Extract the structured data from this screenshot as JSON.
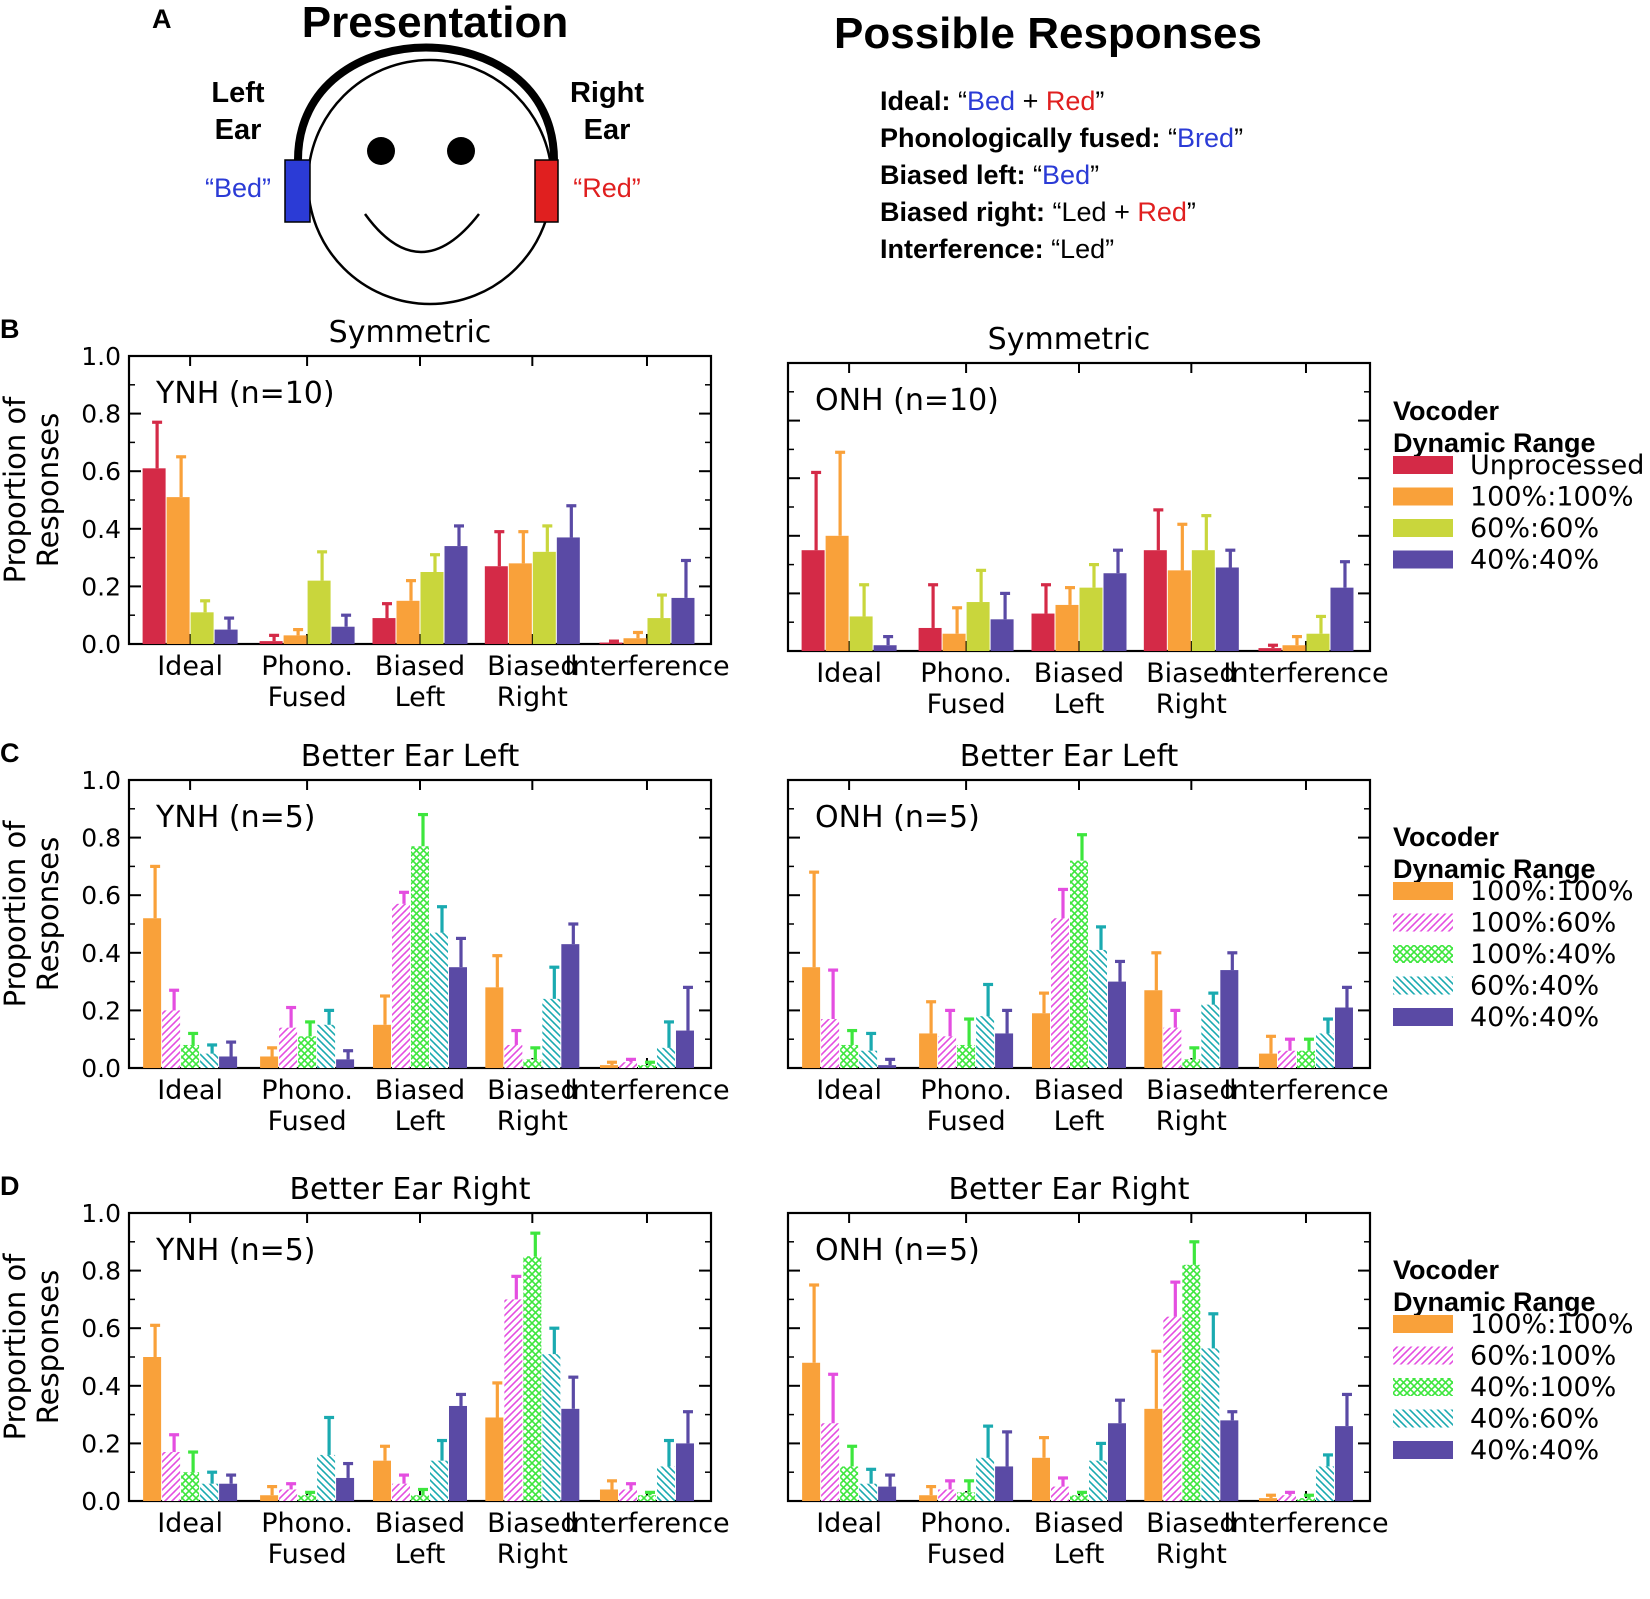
{
  "panel_a": {
    "letter": "A",
    "presentation_title": "Presentation",
    "left_ear": {
      "line1": "Left",
      "line2": "Ear",
      "word": "“Bed”"
    },
    "right_ear": {
      "line1": "Right",
      "line2": "Ear",
      "word": "“Red”"
    },
    "responses_title": "Possible Responses",
    "responses": [
      {
        "label": "Ideal:",
        "parts": [
          {
            "t": " “",
            "c": "black"
          },
          {
            "t": "Bed",
            "c": "blue"
          },
          {
            "t": " + ",
            "c": "black"
          },
          {
            "t": "Red",
            "c": "red"
          },
          {
            "t": "”",
            "c": "black"
          }
        ]
      },
      {
        "label": "Phonologically fused:",
        "parts": [
          {
            "t": " “",
            "c": "black"
          },
          {
            "t": "Bred",
            "c": "blue"
          },
          {
            "t": "”",
            "c": "black"
          }
        ]
      },
      {
        "label": "Biased left:",
        "parts": [
          {
            "t": " “",
            "c": "black"
          },
          {
            "t": "Bed",
            "c": "blue"
          },
          {
            "t": "”",
            "c": "black"
          }
        ]
      },
      {
        "label": "Biased right:",
        "parts": [
          {
            "t": " “Led + ",
            "c": "black"
          },
          {
            "t": "Red",
            "c": "red"
          },
          {
            "t": "”",
            "c": "black"
          }
        ]
      },
      {
        "label": "Interference:",
        "parts": [
          {
            "t": " “Led”",
            "c": "black"
          }
        ]
      }
    ]
  },
  "colors": {
    "blue": "#2b3bd6",
    "red": "#e01f1f",
    "black": "#000000",
    "Unprocessed": "#d42a47",
    "100%:100%": "#f9a13a",
    "60%:60%": "#c9d63c",
    "40%:40%": "#5a4aa5",
    "magenta": "#e44ee0",
    "green": "#3de63d",
    "teal": "#1aaab0"
  },
  "y_axis_label": [
    "Proportion of",
    "Responses"
  ],
  "categories": [
    "Ideal",
    "Phono.\nFused",
    "Biased\nLeft",
    "Biased\nRight",
    "Interference"
  ],
  "legend_title": [
    "Vocoder",
    "Dynamic Range"
  ],
  "chart_data": [
    {
      "type": "bar",
      "row": "B",
      "title": "Symmetric",
      "group_label": "YNH (n=10)",
      "ylim": [
        0,
        1
      ],
      "yticks": [
        0.0,
        0.2,
        0.4,
        0.6,
        0.8,
        1.0
      ],
      "series": [
        {
          "name": "Unprocessed",
          "pattern": "solid",
          "color_key": "Unprocessed",
          "values": [
            0.61,
            0.01,
            0.09,
            0.27,
            0.005
          ],
          "err": [
            0.77,
            0.03,
            0.14,
            0.39,
            0.01
          ]
        },
        {
          "name": "100%:100%",
          "pattern": "solid",
          "color_key": "100%:100%",
          "values": [
            0.51,
            0.03,
            0.15,
            0.28,
            0.02
          ],
          "err": [
            0.65,
            0.05,
            0.22,
            0.39,
            0.04
          ]
        },
        {
          "name": "60%:60%",
          "pattern": "solid",
          "color_key": "60%:60%",
          "values": [
            0.11,
            0.22,
            0.25,
            0.32,
            0.09
          ],
          "err": [
            0.15,
            0.32,
            0.31,
            0.41,
            0.17
          ]
        },
        {
          "name": "40%:40%",
          "pattern": "solid",
          "color_key": "40%:40%",
          "values": [
            0.05,
            0.06,
            0.34,
            0.37,
            0.16
          ],
          "err": [
            0.09,
            0.1,
            0.41,
            0.48,
            0.29
          ]
        }
      ]
    },
    {
      "type": "bar",
      "row": "B",
      "title": "Symmetric",
      "group_label": "ONH (n=10)",
      "ylim": [
        0,
        1
      ],
      "yticks": [],
      "series": [
        {
          "name": "Unprocessed",
          "pattern": "solid",
          "color_key": "Unprocessed",
          "values": [
            0.35,
            0.08,
            0.13,
            0.35,
            0.01
          ],
          "err": [
            0.62,
            0.23,
            0.23,
            0.49,
            0.02
          ]
        },
        {
          "name": "100%:100%",
          "pattern": "solid",
          "color_key": "100%:100%",
          "values": [
            0.4,
            0.06,
            0.16,
            0.28,
            0.02
          ],
          "err": [
            0.69,
            0.15,
            0.22,
            0.44,
            0.05
          ]
        },
        {
          "name": "60%:60%",
          "pattern": "solid",
          "color_key": "60%:60%",
          "values": [
            0.12,
            0.17,
            0.22,
            0.35,
            0.06
          ],
          "err": [
            0.23,
            0.28,
            0.3,
            0.47,
            0.12
          ]
        },
        {
          "name": "40%:40%",
          "pattern": "solid",
          "color_key": "40%:40%",
          "values": [
            0.02,
            0.11,
            0.27,
            0.29,
            0.22
          ],
          "err": [
            0.05,
            0.2,
            0.35,
            0.35,
            0.31
          ]
        }
      ]
    },
    {
      "type": "bar",
      "row": "C",
      "title": "Better Ear Left",
      "group_label": "YNH (n=5)",
      "ylim": [
        0,
        1
      ],
      "yticks": [
        0.0,
        0.2,
        0.4,
        0.6,
        0.8,
        1.0
      ],
      "series": [
        {
          "name": "100%:100%",
          "pattern": "solid",
          "color_key": "100%:100%",
          "values": [
            0.52,
            0.04,
            0.15,
            0.28,
            0.01
          ],
          "err": [
            0.7,
            0.07,
            0.25,
            0.39,
            0.02
          ]
        },
        {
          "name": "100%:60%",
          "pattern": "hatch",
          "color_key": "magenta",
          "values": [
            0.2,
            0.14,
            0.57,
            0.08,
            0.02
          ],
          "err": [
            0.27,
            0.21,
            0.61,
            0.13,
            0.03
          ]
        },
        {
          "name": "100%:40%",
          "pattern": "cross",
          "color_key": "green",
          "values": [
            0.08,
            0.11,
            0.77,
            0.03,
            0.01
          ],
          "err": [
            0.12,
            0.16,
            0.88,
            0.07,
            0.02
          ]
        },
        {
          "name": "60%:40%",
          "pattern": "backhatch",
          "color_key": "teal",
          "values": [
            0.05,
            0.15,
            0.47,
            0.24,
            0.07
          ],
          "err": [
            0.08,
            0.2,
            0.56,
            0.35,
            0.16
          ]
        },
        {
          "name": "40%:40%",
          "pattern": "solid",
          "color_key": "40%:40%",
          "values": [
            0.04,
            0.03,
            0.35,
            0.43,
            0.13
          ],
          "err": [
            0.09,
            0.06,
            0.45,
            0.5,
            0.28
          ]
        }
      ]
    },
    {
      "type": "bar",
      "row": "C",
      "title": "Better Ear Left",
      "group_label": "ONH (n=5)",
      "ylim": [
        0,
        1
      ],
      "yticks": [],
      "series": [
        {
          "name": "100%:100%",
          "pattern": "solid",
          "color_key": "100%:100%",
          "values": [
            0.35,
            0.12,
            0.19,
            0.27,
            0.05
          ],
          "err": [
            0.68,
            0.23,
            0.26,
            0.4,
            0.11
          ]
        },
        {
          "name": "100%:60%",
          "pattern": "hatch",
          "color_key": "magenta",
          "values": [
            0.17,
            0.11,
            0.52,
            0.14,
            0.06
          ],
          "err": [
            0.34,
            0.2,
            0.62,
            0.2,
            0.1
          ]
        },
        {
          "name": "100%:40%",
          "pattern": "cross",
          "color_key": "green",
          "values": [
            0.08,
            0.08,
            0.72,
            0.03,
            0.06
          ],
          "err": [
            0.13,
            0.17,
            0.81,
            0.07,
            0.1
          ]
        },
        {
          "name": "60%:40%",
          "pattern": "backhatch",
          "color_key": "teal",
          "values": [
            0.06,
            0.18,
            0.41,
            0.22,
            0.12
          ],
          "err": [
            0.12,
            0.29,
            0.49,
            0.26,
            0.17
          ]
        },
        {
          "name": "40%:40%",
          "pattern": "solid",
          "color_key": "40%:40%",
          "values": [
            0.01,
            0.12,
            0.3,
            0.34,
            0.21
          ],
          "err": [
            0.03,
            0.2,
            0.37,
            0.4,
            0.28
          ]
        }
      ]
    },
    {
      "type": "bar",
      "row": "D",
      "title": "Better Ear Right",
      "group_label": "YNH (n=5)",
      "ylim": [
        0,
        1
      ],
      "yticks": [
        0.0,
        0.2,
        0.4,
        0.6,
        0.8,
        1.0
      ],
      "series": [
        {
          "name": "100%:100%",
          "pattern": "solid",
          "color_key": "100%:100%",
          "values": [
            0.5,
            0.02,
            0.14,
            0.29,
            0.04
          ],
          "err": [
            0.61,
            0.05,
            0.19,
            0.41,
            0.07
          ]
        },
        {
          "name": "60%:100%",
          "pattern": "hatch",
          "color_key": "magenta",
          "values": [
            0.17,
            0.04,
            0.06,
            0.7,
            0.04
          ],
          "err": [
            0.23,
            0.06,
            0.09,
            0.78,
            0.06
          ]
        },
        {
          "name": "40%:100%",
          "pattern": "cross",
          "color_key": "green",
          "values": [
            0.1,
            0.02,
            0.02,
            0.85,
            0.02
          ],
          "err": [
            0.17,
            0.03,
            0.04,
            0.93,
            0.03
          ]
        },
        {
          "name": "40%:60%",
          "pattern": "backhatch",
          "color_key": "teal",
          "values": [
            0.06,
            0.16,
            0.14,
            0.51,
            0.12
          ],
          "err": [
            0.1,
            0.29,
            0.21,
            0.6,
            0.21
          ]
        },
        {
          "name": "40%:40%",
          "pattern": "solid",
          "color_key": "40%:40%",
          "values": [
            0.06,
            0.08,
            0.33,
            0.32,
            0.2
          ],
          "err": [
            0.09,
            0.13,
            0.37,
            0.43,
            0.31
          ]
        }
      ]
    },
    {
      "type": "bar",
      "row": "D",
      "title": "Better Ear Right",
      "group_label": "ONH (n=5)",
      "ylim": [
        0,
        1
      ],
      "yticks": [],
      "series": [
        {
          "name": "100%:100%",
          "pattern": "solid",
          "color_key": "100%:100%",
          "values": [
            0.48,
            0.02,
            0.15,
            0.32,
            0.01
          ],
          "err": [
            0.75,
            0.05,
            0.22,
            0.52,
            0.02
          ]
        },
        {
          "name": "60%:100%",
          "pattern": "hatch",
          "color_key": "magenta",
          "values": [
            0.27,
            0.04,
            0.05,
            0.64,
            0.02
          ],
          "err": [
            0.44,
            0.07,
            0.08,
            0.76,
            0.03
          ]
        },
        {
          "name": "40%:100%",
          "pattern": "cross",
          "color_key": "green",
          "values": [
            0.12,
            0.03,
            0.02,
            0.82,
            0.01
          ],
          "err": [
            0.19,
            0.07,
            0.03,
            0.9,
            0.02
          ]
        },
        {
          "name": "40%:60%",
          "pattern": "backhatch",
          "color_key": "teal",
          "values": [
            0.06,
            0.15,
            0.14,
            0.53,
            0.12
          ],
          "err": [
            0.11,
            0.26,
            0.2,
            0.65,
            0.16
          ]
        },
        {
          "name": "40%:40%",
          "pattern": "solid",
          "color_key": "40%:40%",
          "values": [
            0.05,
            0.12,
            0.27,
            0.28,
            0.26
          ],
          "err": [
            0.09,
            0.24,
            0.35,
            0.31,
            0.37
          ]
        }
      ]
    }
  ],
  "legends": [
    {
      "row": "B",
      "items": [
        {
          "label": "Unprocessed",
          "pattern": "solid",
          "color_key": "Unprocessed"
        },
        {
          "label": "100%:100%",
          "pattern": "solid",
          "color_key": "100%:100%"
        },
        {
          "label": "60%:60%",
          "pattern": "solid",
          "color_key": "60%:60%"
        },
        {
          "label": "40%:40%",
          "pattern": "solid",
          "color_key": "40%:40%"
        }
      ]
    },
    {
      "row": "C",
      "items": [
        {
          "label": "100%:100%",
          "pattern": "solid",
          "color_key": "100%:100%"
        },
        {
          "label": "100%:60%",
          "pattern": "hatch",
          "color_key": "magenta"
        },
        {
          "label": "100%:40%",
          "pattern": "cross",
          "color_key": "green"
        },
        {
          "label": "60%:40%",
          "pattern": "backhatch",
          "color_key": "teal"
        },
        {
          "label": "40%:40%",
          "pattern": "solid",
          "color_key": "40%:40%"
        }
      ]
    },
    {
      "row": "D",
      "items": [
        {
          "label": "100%:100%",
          "pattern": "solid",
          "color_key": "100%:100%"
        },
        {
          "label": "60%:100%",
          "pattern": "hatch",
          "color_key": "magenta"
        },
        {
          "label": "40%:100%",
          "pattern": "cross",
          "color_key": "green"
        },
        {
          "label": "40%:60%",
          "pattern": "backhatch",
          "color_key": "teal"
        },
        {
          "label": "40%:40%",
          "pattern": "solid",
          "color_key": "40%:40%"
        }
      ]
    }
  ]
}
